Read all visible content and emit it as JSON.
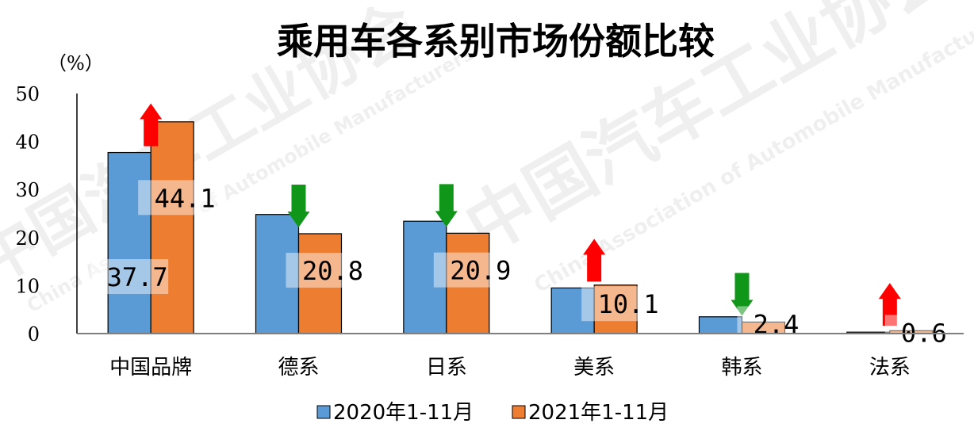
{
  "chart_data": {
    "type": "bar",
    "title": "乘用车各系别市场份额比较",
    "unit_label": "（%）",
    "categories": [
      "中国品牌",
      "德系",
      "日系",
      "美系",
      "韩系",
      "法系"
    ],
    "series": [
      {
        "name": "2020年1-11月",
        "values": [
          37.7,
          24.8,
          23.4,
          9.5,
          3.5,
          0.3
        ],
        "color": "#5b9bd5"
      },
      {
        "name": "2021年1-11月",
        "values": [
          44.1,
          20.8,
          20.9,
          10.1,
          2.4,
          0.6
        ],
        "color": "#ed7d31"
      }
    ],
    "data_labels": [
      {
        "text": "37.7",
        "series": 0,
        "category": 0
      },
      {
        "text": "44.1",
        "series": 1,
        "category": 0
      },
      {
        "text": "20.8",
        "series": 1,
        "category": 1
      },
      {
        "text": "20.9",
        "series": 1,
        "category": 2
      },
      {
        "text": "10.1",
        "series": 1,
        "category": 3
      },
      {
        "text": "2.4",
        "series": 1,
        "category": 4
      },
      {
        "text": "0.6",
        "series": 1,
        "category": 5
      }
    ],
    "trend_arrows": [
      "up",
      "down",
      "down",
      "up",
      "down",
      "up"
    ],
    "arrow_colors": {
      "up": "#ff0000",
      "down": "#109618"
    },
    "ylim": [
      0,
      50
    ],
    "yticks": [
      0,
      10,
      20,
      30,
      40,
      50
    ],
    "legend_position": "bottom",
    "grid": false
  },
  "watermark": {
    "text_cn": "中国汽车工业协会",
    "text_en": "China Association of Automobile Manufacturers"
  }
}
